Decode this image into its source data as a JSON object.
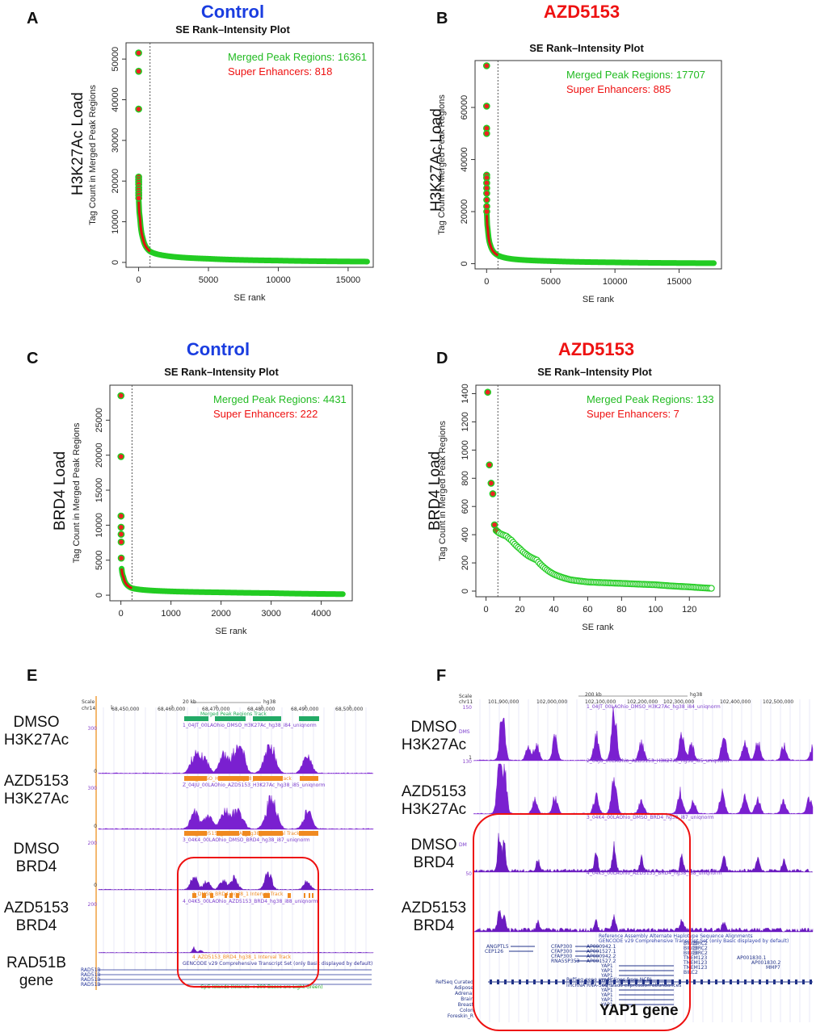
{
  "chart_data": [
    {
      "panel": "A",
      "type": "scatter",
      "condition": "Control",
      "condition_color": "#1a3de0",
      "title": "SE Rank–Intensity Plot",
      "load_label": "H3K27Ac Load",
      "ylabel": "Tag Count in Merged Peak Regions",
      "xlabel": "SE rank",
      "xlim": [
        -900,
        16800
      ],
      "ylim": [
        -1200,
        54000
      ],
      "xticks": [
        0,
        5000,
        10000,
        15000
      ],
      "yticks": [
        0,
        10000,
        20000,
        30000,
        40000,
        50000
      ],
      "cutoff_rank": 818,
      "total": 16361,
      "top_values": [
        51500,
        47000,
        37700,
        21000,
        20400,
        19800,
        19200,
        18400,
        17800,
        17100,
        16500,
        15800
      ],
      "curve_anchor": [
        [
          15,
          15000
        ],
        [
          100,
          11000
        ],
        [
          300,
          6000
        ],
        [
          818,
          2700
        ],
        [
          2000,
          1600
        ],
        [
          5000,
          900
        ],
        [
          10000,
          450
        ],
        [
          16361,
          200
        ]
      ],
      "legend": [
        "Merged Peak Regions: 16361",
        "Super Enhancers: 818"
      ]
    },
    {
      "panel": "B",
      "type": "scatter",
      "condition": "AZD5153",
      "condition_color": "#ee1111",
      "title": "SE Rank–Intensity Plot",
      "load_label": "H3K27Ac Load",
      "ylabel": "Tag Count in Merged Peak Regions",
      "xlabel": "SE rank",
      "xlim": [
        -900,
        18300
      ],
      "ylim": [
        -2000,
        78000
      ],
      "xticks": [
        0,
        5000,
        10000,
        15000
      ],
      "yticks": [
        0,
        20000,
        40000,
        60000
      ],
      "cutoff_rank": 885,
      "total": 17707,
      "top_values": [
        76000,
        60500,
        52000,
        50000,
        34000,
        33000,
        31000,
        29000,
        27000,
        24500,
        22000,
        20000
      ],
      "curve_anchor": [
        [
          15,
          19000
        ],
        [
          100,
          13000
        ],
        [
          300,
          7000
        ],
        [
          885,
          3200
        ],
        [
          2000,
          1800
        ],
        [
          5000,
          1000
        ],
        [
          10000,
          500
        ],
        [
          17707,
          200
        ]
      ],
      "legend": [
        "Merged Peak Regions: 17707",
        "Super Enhancers: 885"
      ]
    },
    {
      "panel": "C",
      "type": "scatter",
      "condition": "Control",
      "condition_color": "#1a3de0",
      "title": "SE Rank–Intensity Plot",
      "load_label": "BRD4 Load",
      "ylabel": "Tag Count in Merged Peak Regions",
      "xlabel": "SE rank",
      "xlim": [
        -220,
        4620
      ],
      "ylim": [
        -800,
        30000
      ],
      "xticks": [
        0,
        1000,
        2000,
        3000,
        4000
      ],
      "yticks": [
        0,
        5000,
        10000,
        15000,
        20000,
        25000
      ],
      "cutoff_rank": 222,
      "total": 4431,
      "top_values": [
        28500,
        19800,
        11300,
        9700,
        8700,
        7600,
        5300
      ],
      "curve_anchor": [
        [
          10,
          4300
        ],
        [
          50,
          2600
        ],
        [
          222,
          1000
        ],
        [
          800,
          600
        ],
        [
          2000,
          400
        ],
        [
          3000,
          300
        ],
        [
          4431,
          150
        ]
      ],
      "legend": [
        "Merged Peak Regions: 4431",
        "Super Enhancers: 222"
      ]
    },
    {
      "panel": "D",
      "type": "scatter",
      "condition": "AZD5153",
      "condition_color": "#ee1111",
      "title": "SE Rank–Intensity Plot",
      "load_label": "BRD4 Load",
      "ylabel": "Tag Count in Merged Peak Regions",
      "xlabel": "SE rank",
      "xlim": [
        -6,
        138
      ],
      "ylim": [
        -40,
        1460
      ],
      "xticks": [
        0,
        20,
        40,
        60,
        80,
        100,
        120
      ],
      "yticks": [
        0,
        200,
        400,
        600,
        800,
        1000,
        1200,
        1400
      ],
      "cutoff_rank": 7,
      "total": 133,
      "top_values": [
        1410,
        895,
        765,
        690,
        470,
        430,
        420
      ],
      "curve_anchor": [
        [
          8,
          410
        ],
        [
          12,
          390
        ],
        [
          15,
          360
        ],
        [
          20,
          300
        ],
        [
          25,
          250
        ],
        [
          30,
          220
        ],
        [
          35,
          160
        ],
        [
          40,
          120
        ],
        [
          50,
          80
        ],
        [
          60,
          65
        ],
        [
          80,
          55
        ],
        [
          100,
          45
        ],
        [
          120,
          30
        ],
        [
          133,
          20
        ]
      ],
      "legend": [
        "Merged Peak Regions: 133",
        "Super Enhancers: 7"
      ]
    }
  ],
  "panel_e": {
    "letter": "E",
    "tracks": [
      "DMSO\nH3K27Ac",
      "AZD5153\nH3K27Ac",
      "DMSO\nBRD4",
      "AZD5153\nBRD4",
      "RAD51B\ngene"
    ],
    "scale_label": "Scale",
    "chrom": "chr14",
    "coords": [
      "68,450,000",
      "68,460,000",
      "68,470,000",
      "68,480,000",
      "68,490,000",
      "68,500,000"
    ],
    "scale_bar": "20 kb",
    "assembly": "hg38",
    "track_names": [
      "Merged Peak Regions Track",
      "1_04JT_00LAOhio_DMSO_H3K27Ac_hg38_i84_uniqnorm",
      "Z_04JU_00LAOhio_AZD5153_H3K27Ac_hg38_i85_uniqnorm",
      "3_04K4_00LAOhio_DMSO_BRD4_hg38_i87_uniqnorm",
      "4_04K5_00LAOhio_AZD5153_BRD4_hg38_i88_uniqnorm",
      "GENCODE v29 Comprehensive Transcript Set (only Basic displayed by default)",
      "CpG Islands (Islands < 300 Bases are Light Green)"
    ],
    "interval_tracks": [
      "1_DMSO_H3K27Ac_hg38_1 Interval Track",
      "2_AZD5153_H3K27Ac_hg38_1 Interval Track",
      "3_DMSO_BRD4_hg38_1 Interval Track",
      "4_AZD5153_BRD4_hg38_1 Interval Track"
    ],
    "y_scales": [
      "300",
      "300",
      "200",
      "200"
    ],
    "y_zero": "0",
    "gene_rows": [
      "RAD51B",
      "RAD51B",
      "RAD51B",
      "RAD51B"
    ]
  },
  "panel_f": {
    "letter": "F",
    "tracks": [
      "DMSO\nH3K27Ac",
      "AZD5153\nH3K27Ac",
      "DMSO\nBRD4",
      "AZD5153\nBRD4"
    ],
    "gene_caption": "YAP1 gene",
    "scale_label": "Scale",
    "chrom": "chr11",
    "coords": [
      "101,900,000",
      "102,000,000",
      "102,100,000",
      "102,200,000",
      "102,300,000",
      "102,400,000",
      "102,500,000"
    ],
    "scale_bar": "200 kb",
    "assembly": "hg38",
    "track_names": [
      "1_04JT_00LAOhio_DMSO_H3K27Ac_hg38_i84_uniqnorm",
      "2_04JU_00LAOhio_AZD5153_H3K27Ac_hg38_i85_uniqnorm",
      "3_04K4_00LAOhio_DMSO_BRD4_hg38_i87_uniqnorm",
      "4_04K5_00LAOhio_AZD5153_BRD4_hg38_i88_uniqnorm",
      "Reference Assembly Alternate Haplotype Sequence Alignments",
      "GENCODE v29 Comprehensive Transcript Set (only Basic displayed by default)",
      "RefSeq gene predictions from NCBI",
      "lincRNA RNA-Seq reads expression abundances"
    ],
    "side_labels": [
      "DMS",
      "DM"
    ],
    "y_scales": [
      "150",
      "130",
      "50"
    ],
    "y_one": "1",
    "genes_left": [
      "ANGPTL5",
      "CEP126",
      "CFAP300",
      "CFAP300",
      "CFAP300",
      "RNA5SP353"
    ],
    "genes_mid": [
      "AP000942.1",
      "AP001527.1",
      "AP000942.2",
      "AP001527.2",
      "YAP1",
      "YAP1",
      "YAP1",
      "YAP1",
      "YAP1",
      "YAP1",
      "YAP1",
      "YAP1",
      "YAP1"
    ],
    "genes_right": [
      "BIRC3",
      "BIRC3",
      "BIRC3",
      "TMEM123",
      "TMEM123",
      "TMEM123",
      "BIRC2",
      "BIRC2",
      "BIRC2",
      "BIRC2",
      "AP001830.1",
      "AP001830.2",
      "MMP7"
    ],
    "tissues": [
      "RefSeq Curated",
      "Adipose",
      "Adrenal",
      "Brain",
      "Breast",
      "Colon",
      "Foreskin_R"
    ]
  }
}
